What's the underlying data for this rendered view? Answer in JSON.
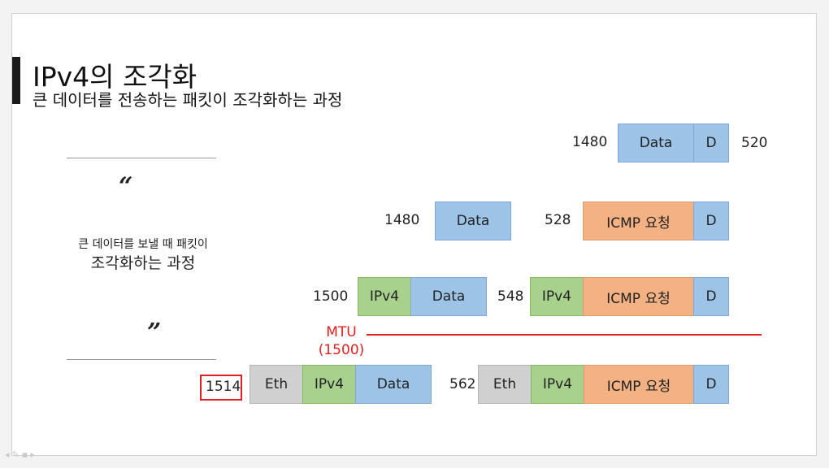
{
  "slide": {
    "title": "IPv4의 조각화",
    "subtitle": "큰 데이터를 전송하는 패킷이 조각화하는 과정"
  },
  "quote": {
    "open_mark": "“",
    "close_mark": "”",
    "line1": "큰 데이터를 보낼 때 패킷이",
    "line2": "조각화하는 과정"
  },
  "labels": {
    "data": "Data",
    "ipv4": "IPv4",
    "icmp": "ICMP 요청",
    "eth": "Eth",
    "d": "D"
  },
  "rows": {
    "row1": {
      "data_size": "1480",
      "remainder": "520"
    },
    "row2": {
      "data_size": "1480",
      "icmp_size": "528"
    },
    "row3": {
      "ipv4_size": "1500",
      "icmp_size": "548"
    },
    "row4": {
      "eth_size": "1514",
      "icmp_size": "562"
    }
  },
  "mtu": {
    "label": "MTU",
    "value": "(1500)"
  },
  "colors": {
    "data": "#9dc3e6",
    "ipv4": "#a9d18e",
    "icmp": "#f4b183",
    "eth": "#d0d0d0",
    "mtu_line": "#e02020"
  }
}
